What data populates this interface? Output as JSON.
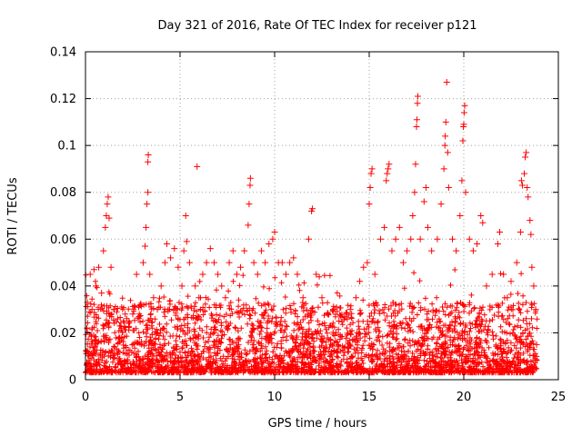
{
  "chart_data": {
    "type": "scatter",
    "title": "Day 321 of 2016, Rate Of TEC Index for receiver p121",
    "xlabel": "GPS time / hours",
    "ylabel": "ROTI / TECUs",
    "xlim": [
      0,
      25
    ],
    "ylim": [
      0,
      0.14
    ],
    "xticks": [
      "0",
      "5",
      "10",
      "15",
      "20",
      "25"
    ],
    "yticks": [
      "0",
      "0.02",
      "0.04",
      "0.06",
      "0.08",
      "0.1",
      "0.12",
      "0.14"
    ],
    "grid": true,
    "marker": "plus",
    "color": "#ff0000",
    "series": [
      {
        "points": [
          [
            0.05,
            0.012
          ],
          [
            0.1,
            0.033
          ],
          [
            0.15,
            0.011
          ],
          [
            0.25,
            0.045
          ],
          [
            0.35,
            0.03
          ],
          [
            0.45,
            0.047
          ],
          [
            0.55,
            0.04
          ],
          [
            0.7,
            0.048
          ],
          [
            0.85,
            0.037
          ],
          [
            0.95,
            0.055
          ],
          [
            1.05,
            0.065
          ],
          [
            1.1,
            0.07
          ],
          [
            1.15,
            0.075
          ],
          [
            1.2,
            0.078
          ],
          [
            1.25,
            0.069
          ],
          [
            1.35,
            0.048
          ],
          [
            1.5,
            0.03
          ],
          [
            1.7,
            0.026
          ],
          [
            1.9,
            0.022
          ],
          [
            2.1,
            0.028
          ],
          [
            2.3,
            0.025
          ],
          [
            2.5,
            0.028
          ],
          [
            2.7,
            0.045
          ],
          [
            2.9,
            0.032
          ],
          [
            3.05,
            0.05
          ],
          [
            3.15,
            0.057
          ],
          [
            3.2,
            0.065
          ],
          [
            3.25,
            0.075
          ],
          [
            3.3,
            0.08
          ],
          [
            3.3,
            0.093
          ],
          [
            3.32,
            0.096
          ],
          [
            3.4,
            0.045
          ],
          [
            3.6,
            0.035
          ],
          [
            3.8,
            0.03
          ],
          [
            4.0,
            0.04
          ],
          [
            4.2,
            0.05
          ],
          [
            4.3,
            0.058
          ],
          [
            4.5,
            0.052
          ],
          [
            4.7,
            0.056
          ],
          [
            4.9,
            0.048
          ],
          [
            5.1,
            0.04
          ],
          [
            5.2,
            0.055
          ],
          [
            5.3,
            0.07
          ],
          [
            5.35,
            0.059
          ],
          [
            5.5,
            0.05
          ],
          [
            5.8,
            0.04
          ],
          [
            5.9,
            0.091
          ],
          [
            6.0,
            0.035
          ],
          [
            6.2,
            0.045
          ],
          [
            6.4,
            0.05
          ],
          [
            6.6,
            0.056
          ],
          [
            6.8,
            0.05
          ],
          [
            7.0,
            0.045
          ],
          [
            7.2,
            0.04
          ],
          [
            7.4,
            0.035
          ],
          [
            7.6,
            0.05
          ],
          [
            7.8,
            0.055
          ],
          [
            8.0,
            0.045
          ],
          [
            8.2,
            0.048
          ],
          [
            8.4,
            0.055
          ],
          [
            8.6,
            0.066
          ],
          [
            8.65,
            0.075
          ],
          [
            8.7,
            0.083
          ],
          [
            8.72,
            0.086
          ],
          [
            8.9,
            0.05
          ],
          [
            9.1,
            0.045
          ],
          [
            9.3,
            0.055
          ],
          [
            9.5,
            0.05
          ],
          [
            9.7,
            0.058
          ],
          [
            9.9,
            0.06
          ],
          [
            10.0,
            0.063
          ],
          [
            10.2,
            0.05
          ],
          [
            10.4,
            0.05
          ],
          [
            10.6,
            0.045
          ],
          [
            10.8,
            0.05
          ],
          [
            11.0,
            0.052
          ],
          [
            11.2,
            0.045
          ],
          [
            11.5,
            0.035
          ],
          [
            11.8,
            0.06
          ],
          [
            11.95,
            0.072
          ],
          [
            12.0,
            0.073
          ],
          [
            12.2,
            0.045
          ],
          [
            12.5,
            0.035
          ],
          [
            12.8,
            0.028
          ],
          [
            13.1,
            0.03
          ],
          [
            13.4,
            0.025
          ],
          [
            13.7,
            0.027
          ],
          [
            14.0,
            0.03
          ],
          [
            14.3,
            0.035
          ],
          [
            14.5,
            0.042
          ],
          [
            14.7,
            0.048
          ],
          [
            14.9,
            0.05
          ],
          [
            15.0,
            0.075
          ],
          [
            15.05,
            0.082
          ],
          [
            15.1,
            0.088
          ],
          [
            15.15,
            0.09
          ],
          [
            15.3,
            0.045
          ],
          [
            15.6,
            0.06
          ],
          [
            15.8,
            0.065
          ],
          [
            15.9,
            0.085
          ],
          [
            15.95,
            0.088
          ],
          [
            16.0,
            0.09
          ],
          [
            16.05,
            0.092
          ],
          [
            16.2,
            0.055
          ],
          [
            16.4,
            0.06
          ],
          [
            16.6,
            0.065
          ],
          [
            16.8,
            0.05
          ],
          [
            17.0,
            0.055
          ],
          [
            17.2,
            0.06
          ],
          [
            17.3,
            0.07
          ],
          [
            17.4,
            0.08
          ],
          [
            17.45,
            0.092
          ],
          [
            17.5,
            0.108
          ],
          [
            17.52,
            0.111
          ],
          [
            17.55,
            0.118
          ],
          [
            17.57,
            0.121
          ],
          [
            17.7,
            0.06
          ],
          [
            17.9,
            0.076
          ],
          [
            18.0,
            0.082
          ],
          [
            18.1,
            0.065
          ],
          [
            18.3,
            0.055
          ],
          [
            18.6,
            0.06
          ],
          [
            18.8,
            0.075
          ],
          [
            18.95,
            0.09
          ],
          [
            19.0,
            0.1
          ],
          [
            19.02,
            0.104
          ],
          [
            19.05,
            0.11
          ],
          [
            19.1,
            0.127
          ],
          [
            19.15,
            0.097
          ],
          [
            19.2,
            0.082
          ],
          [
            19.4,
            0.06
          ],
          [
            19.6,
            0.055
          ],
          [
            19.8,
            0.07
          ],
          [
            19.9,
            0.085
          ],
          [
            19.95,
            0.102
          ],
          [
            19.98,
            0.108
          ],
          [
            20.0,
            0.109
          ],
          [
            20.02,
            0.114
          ],
          [
            20.05,
            0.117
          ],
          [
            20.1,
            0.08
          ],
          [
            20.3,
            0.06
          ],
          [
            20.5,
            0.055
          ],
          [
            20.7,
            0.058
          ],
          [
            20.9,
            0.07
          ],
          [
            21.0,
            0.067
          ],
          [
            21.2,
            0.04
          ],
          [
            21.5,
            0.045
          ],
          [
            21.8,
            0.058
          ],
          [
            21.9,
            0.063
          ],
          [
            22.1,
            0.045
          ],
          [
            22.3,
            0.035
          ],
          [
            22.5,
            0.042
          ],
          [
            22.8,
            0.05
          ],
          [
            23.0,
            0.063
          ],
          [
            23.05,
            0.085
          ],
          [
            23.1,
            0.083
          ],
          [
            23.2,
            0.088
          ],
          [
            23.25,
            0.095
          ],
          [
            23.3,
            0.097
          ],
          [
            23.35,
            0.082
          ],
          [
            23.4,
            0.078
          ],
          [
            23.5,
            0.068
          ],
          [
            23.55,
            0.062
          ],
          [
            23.6,
            0.048
          ],
          [
            23.7,
            0.04
          ],
          [
            23.8,
            0.03
          ],
          [
            23.85,
            0.015
          ]
        ]
      }
    ]
  }
}
